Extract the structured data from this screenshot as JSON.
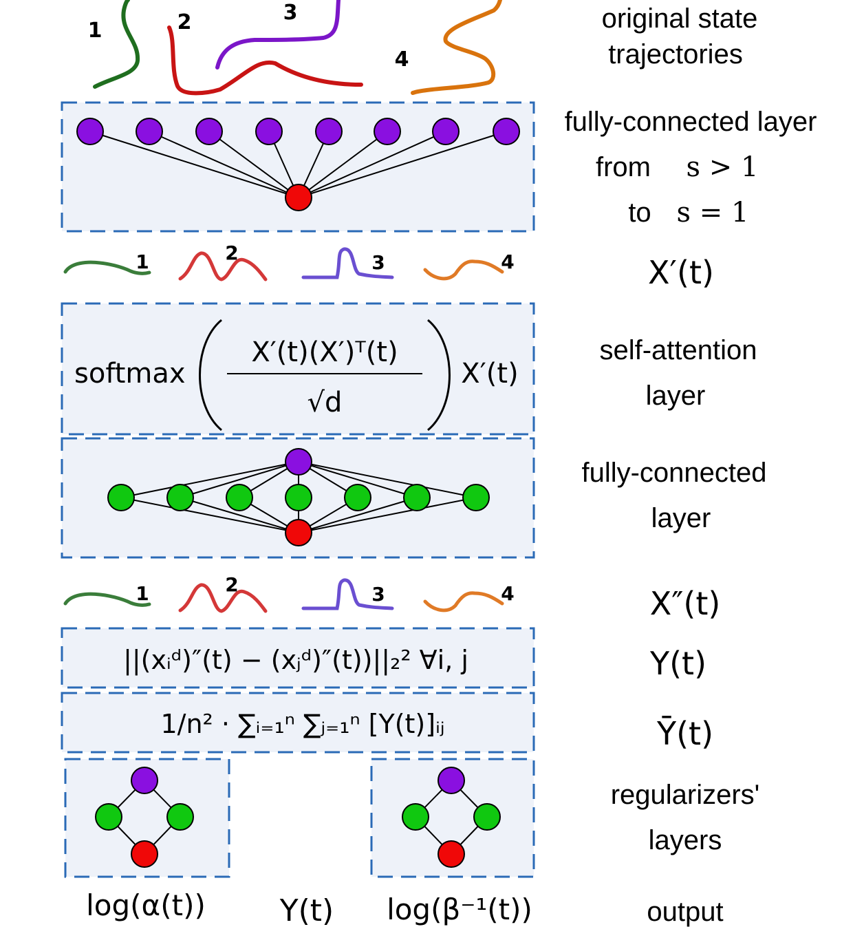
{
  "colors": {
    "traj1": "#1f6e1f",
    "traj2": "#c81414",
    "traj3": "#7b16c8",
    "traj4": "#d9730d",
    "traj1_small": "#3a7d3a",
    "traj2_small": "#d43838",
    "traj3_small": "#6a4fd1",
    "traj4_small": "#e07a26",
    "node_purple": "#8a10e0",
    "node_red": "#f00808",
    "node_green": "#10c810",
    "box_fill": "#eef2f9",
    "box_border": "#2a6ab6"
  },
  "trajectory_labels": [
    "1",
    "2",
    "3",
    "4"
  ],
  "labels": {
    "original_line1": "original state",
    "original_line2": "trajectories",
    "fc1_line1": "fully-connected layer",
    "fc1_from": "from",
    "fc1_from_math": "s > 1",
    "fc1_to": "to",
    "fc1_to_math": "s = 1",
    "xprime": "X′(t)",
    "sa_line1": "self-attention",
    "sa_line2": "layer",
    "fc2_line1": "fully-connected",
    "fc2_line2": "layer",
    "xdoubleprime": "X″(t)",
    "y": "Y(t)",
    "ybar": "Ȳ(t)",
    "reg_line1": "regularizers'",
    "reg_line2": "layers",
    "output": "output"
  },
  "formulas": {
    "softmax": "softmax",
    "numerator": "X′(t)(X′)ᵀ(t)",
    "denominator": "√d",
    "after": "X′(t)",
    "norm": "||(xᵢᵈ)″(t) − (xⱼᵈ)″(t))||₂²   ∀i, j",
    "mean": "1/n² · ∑ᵢ₌₁ⁿ ∑ⱼ₌₁ⁿ [Y(t)]ᵢⱼ"
  },
  "outputs": {
    "alpha": "log(α(t))",
    "y": "Y(t)",
    "beta": "log(β⁻¹(t))"
  }
}
